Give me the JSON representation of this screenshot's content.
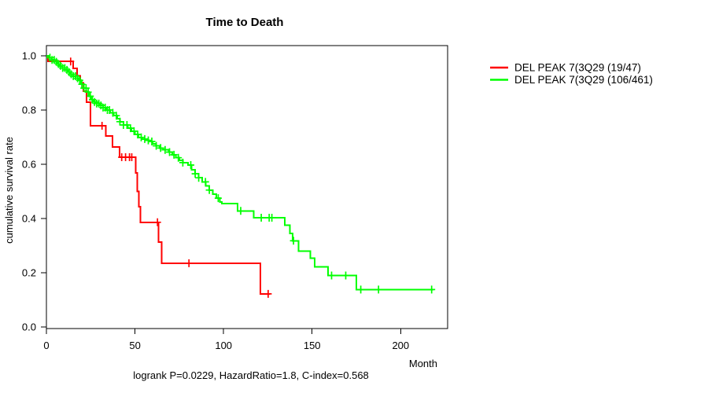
{
  "chart_data": {
    "type": "line",
    "subtype": "kaplan-meier-step",
    "title": "Time to Death",
    "xlabel": "Month",
    "ylabel": "cumulative survival rate",
    "annotation": "logrank P=0.0229, HazardRatio=1.8, C-index=0.568",
    "grid": false,
    "legend_position": "right-outside",
    "x_axis": {
      "ticks": [
        0,
        50,
        100,
        150,
        200
      ],
      "tick_labels": [
        "0",
        "50",
        "100",
        "150",
        "200"
      ],
      "range": [
        0,
        226
      ]
    },
    "y_axis": {
      "ticks": [
        0.0,
        0.2,
        0.4,
        0.6,
        0.8,
        1.0
      ],
      "tick_labels": [
        "0.0",
        "0.2",
        "0.4",
        "0.6",
        "0.8",
        "1.0"
      ],
      "range": [
        0,
        1
      ]
    },
    "series": [
      {
        "id": "red",
        "name": "DEL PEAK  7(3Q29 (19/47)",
        "color": "#ff0000",
        "events_over_n": "19/47",
        "steps": [
          [
            0,
            1.0
          ],
          [
            0.9,
            0.979
          ],
          [
            15.1,
            0.954
          ],
          [
            17.3,
            0.926
          ],
          [
            19.1,
            0.9
          ],
          [
            20.9,
            0.87
          ],
          [
            22.6,
            0.829
          ],
          [
            24.9,
            0.742
          ],
          [
            33.6,
            0.704
          ],
          [
            37.2,
            0.664
          ],
          [
            41.2,
            0.626
          ],
          [
            50.4,
            0.568
          ],
          [
            51.3,
            0.5
          ],
          [
            52.2,
            0.443
          ],
          [
            53.1,
            0.386
          ],
          [
            63.4,
            0.313
          ],
          [
            65.1,
            0.235
          ],
          [
            120.8,
            0.122
          ]
        ],
        "end_month": 126.2,
        "censor_months": [
          13.7,
          31.4,
          42.5,
          44.7,
          46.9,
          48.2,
          62.7,
          80.5,
          125.2
        ]
      },
      {
        "id": "green",
        "name": "DEL PEAK  7(3Q29 (106/461)",
        "color": "#00ff00",
        "events_over_n": "106/461",
        "steps": [
          [
            0,
            1.0
          ],
          [
            1.5,
            0.993
          ],
          [
            3,
            0.985
          ],
          [
            4.5,
            0.978
          ],
          [
            6,
            0.97
          ],
          [
            7.5,
            0.963
          ],
          [
            9,
            0.955
          ],
          [
            10.5,
            0.948
          ],
          [
            12,
            0.94
          ],
          [
            13.5,
            0.932
          ],
          [
            15,
            0.925
          ],
          [
            16.5,
            0.917
          ],
          [
            18,
            0.91
          ],
          [
            19.5,
            0.895
          ],
          [
            21,
            0.881
          ],
          [
            22.5,
            0.866
          ],
          [
            24,
            0.851
          ],
          [
            25.5,
            0.838
          ],
          [
            26.5,
            0.83
          ],
          [
            28,
            0.824
          ],
          [
            30,
            0.817
          ],
          [
            32,
            0.809
          ],
          [
            34,
            0.8
          ],
          [
            36,
            0.79
          ],
          [
            38,
            0.779
          ],
          [
            40,
            0.768
          ],
          [
            41.5,
            0.757
          ],
          [
            43.5,
            0.745
          ],
          [
            46,
            0.733
          ],
          [
            48,
            0.722
          ],
          [
            50,
            0.71
          ],
          [
            52,
            0.699
          ],
          [
            54,
            0.693
          ],
          [
            56,
            0.688
          ],
          [
            58,
            0.684
          ],
          [
            60,
            0.676
          ],
          [
            62,
            0.668
          ],
          [
            64,
            0.66
          ],
          [
            66,
            0.653
          ],
          [
            69,
            0.645
          ],
          [
            71,
            0.635
          ],
          [
            73,
            0.624
          ],
          [
            75,
            0.614
          ],
          [
            77,
            0.606
          ],
          [
            80,
            0.597
          ],
          [
            82,
            0.58
          ],
          [
            84,
            0.565
          ],
          [
            86,
            0.55
          ],
          [
            88,
            0.535
          ],
          [
            90,
            0.52
          ],
          [
            92,
            0.505
          ],
          [
            94,
            0.49
          ],
          [
            96,
            0.475
          ],
          [
            98,
            0.461
          ],
          [
            99,
            0.455
          ],
          [
            108,
            0.428
          ],
          [
            117,
            0.403
          ],
          [
            134.5,
            0.375
          ],
          [
            137.5,
            0.345
          ],
          [
            139,
            0.318
          ],
          [
            142.4,
            0.28
          ],
          [
            149,
            0.253
          ],
          [
            151.5,
            0.222
          ],
          [
            159,
            0.19
          ],
          [
            175,
            0.138
          ]
        ],
        "end_month": 218.5,
        "censor_months": [
          2,
          3.2,
          4.4,
          5.6,
          6.8,
          8,
          9.2,
          10.4,
          11.6,
          12.8,
          14,
          15.2,
          16.4,
          17.6,
          18.8,
          20,
          21.2,
          22.4,
          23.6,
          24.8,
          26,
          27.2,
          28.4,
          29.6,
          30.8,
          32,
          33.2,
          34.4,
          35.6,
          37.5,
          39.5,
          41.5,
          43.5,
          45.5,
          47.5,
          49.5,
          51.5,
          53.5,
          55.5,
          57.5,
          59.5,
          62,
          64.5,
          67,
          69.5,
          72,
          74.5,
          77,
          81.5,
          84,
          86,
          89.8,
          92,
          97,
          109.7,
          121.3,
          125.8,
          127.3,
          139.5,
          161,
          169,
          177.5,
          187.5,
          217.5
        ]
      }
    ]
  }
}
